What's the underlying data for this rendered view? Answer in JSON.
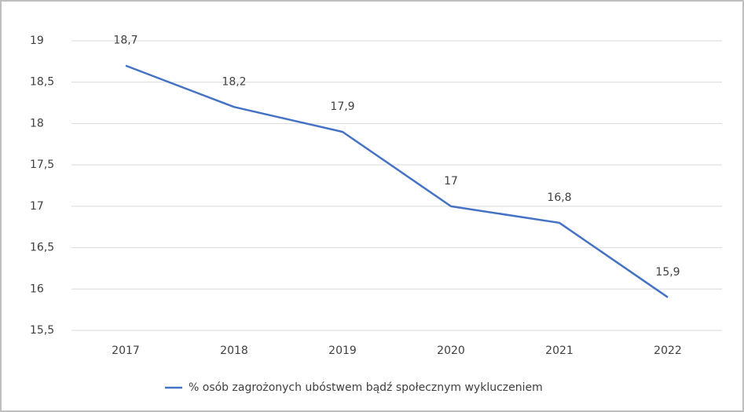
{
  "chart_data": {
    "type": "line",
    "categories": [
      "2017",
      "2018",
      "2019",
      "2020",
      "2021",
      "2022"
    ],
    "series": [
      {
        "name": "% osób zagrożonych ubóstwem bądź społecznym wykluczeniem",
        "color": "#4472c4",
        "values": [
          18.7,
          18.2,
          17.9,
          17,
          16.8,
          15.9
        ],
        "value_labels": [
          "18,7",
          "18,2",
          "17,9",
          "17",
          "16,8",
          "15,9"
        ]
      }
    ],
    "ylim": [
      15.5,
      19
    ],
    "yticks": [
      {
        "value": 15.5,
        "label": "15,5"
      },
      16,
      {
        "value": 16.5,
        "label": "16,5"
      },
      17,
      {
        "value": 17.5,
        "label": "17,5"
      },
      18,
      {
        "value": 18.5,
        "label": "18,5"
      },
      19
    ],
    "grid": true,
    "legend": "bottom"
  }
}
